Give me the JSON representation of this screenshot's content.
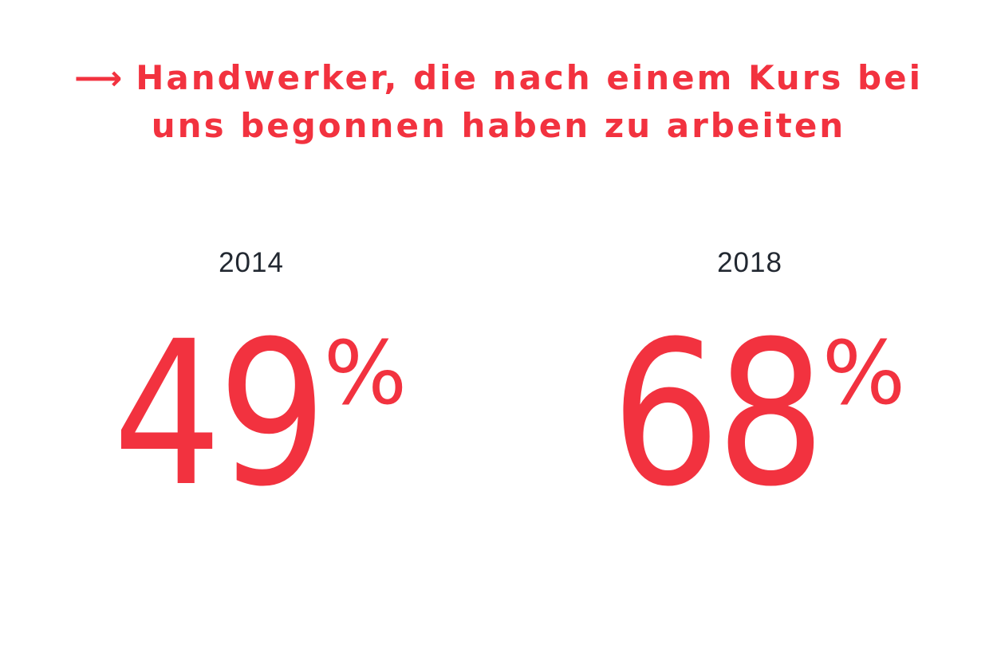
{
  "headline": {
    "arrow": "⟶",
    "line1": "Handwerker, die nach einem Kurs bei",
    "line2": "uns begonnen haben zu arbeiten"
  },
  "stats": [
    {
      "year": "2014",
      "value": "49",
      "unit": "%"
    },
    {
      "year": "2018",
      "value": "68",
      "unit": "%"
    }
  ],
  "colors": {
    "accent": "#f2323f",
    "text": "#222831",
    "background": "#ffffff"
  }
}
